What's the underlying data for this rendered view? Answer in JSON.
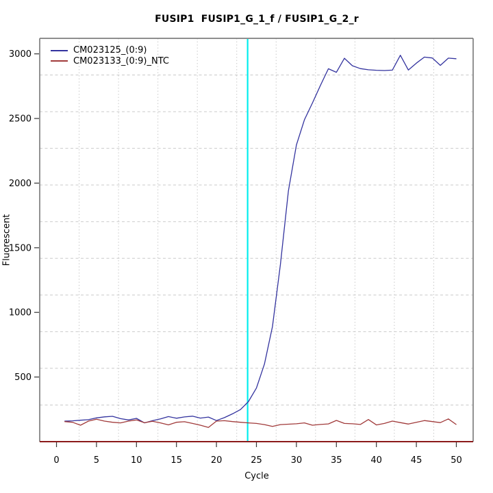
{
  "title": "FUSIP1  FUSIP1_G_1_f / FUSIP1_G_2_r",
  "colors": {
    "background": "#ffffff",
    "box_border": "#7e7e7e",
    "grid": "#c9c9c9",
    "tick": "#333333",
    "text": "#000000"
  },
  "chart_data": {
    "type": "line",
    "title": "FUSIP1  FUSIP1_G_1_f / FUSIP1_G_2_r",
    "xlabel": "Cycle",
    "ylabel": "Fluorescent",
    "xlim": [
      -2.1,
      52.1
    ],
    "ylim": [
      0,
      3120
    ],
    "xticks": [
      0,
      5,
      10,
      15,
      20,
      25,
      30,
      35,
      40,
      45,
      50
    ],
    "yticks": [
      500,
      1000,
      1500,
      2000,
      2500,
      3000
    ],
    "grid": {
      "nx": 11,
      "ny": 11,
      "vertical_style": "dotted",
      "horizontal_style": "dashed",
      "color": "#c9c9c9"
    },
    "threshold_line": {
      "orientation": "vertical",
      "x": 23.9,
      "color": "#00eeee"
    },
    "baseline_line": {
      "orientation": "horizontal",
      "y": 0,
      "color": "#8b1a1a"
    },
    "legend_position": "top-left",
    "x": [
      1,
      2,
      3,
      4,
      5,
      6,
      7,
      8,
      9,
      10,
      11,
      12,
      13,
      14,
      15,
      16,
      17,
      18,
      19,
      20,
      21,
      22,
      23,
      24,
      25,
      26,
      27,
      28,
      29,
      30,
      31,
      32,
      33,
      34,
      35,
      36,
      37,
      38,
      39,
      40,
      41,
      42,
      43,
      44,
      45,
      46,
      47,
      48,
      49,
      50
    ],
    "series": [
      {
        "name": "CM023125_(0:9)",
        "color": "#32329e",
        "values": [
          159,
          161,
          166,
          170,
          184,
          192,
          196,
          178,
          168,
          180,
          145,
          162,
          176,
          194,
          181,
          191,
          197,
          182,
          190,
          163,
          186,
          215,
          248,
          310,
          415,
          600,
          890,
          1370,
          1940,
          2295,
          2490,
          2620,
          2755,
          2885,
          2857,
          2966,
          2908,
          2886,
          2877,
          2873,
          2871,
          2874,
          2989,
          2875,
          2928,
          2975,
          2968,
          2911,
          2967,
          2962
        ]
      },
      {
        "name": "CM023133_(0:9)_NTC",
        "color": "#a03939",
        "values": [
          155,
          150,
          127,
          159,
          174,
          159,
          150,
          145,
          159,
          168,
          146,
          158,
          145,
          130,
          150,
          154,
          141,
          127,
          110,
          159,
          162,
          155,
          150,
          145,
          141,
          132,
          118,
          132,
          135,
          138,
          145,
          127,
          133,
          137,
          164,
          141,
          138,
          133,
          171,
          129,
          141,
          159,
          147,
          136,
          150,
          163,
          155,
          147,
          176,
          132
        ]
      }
    ]
  }
}
